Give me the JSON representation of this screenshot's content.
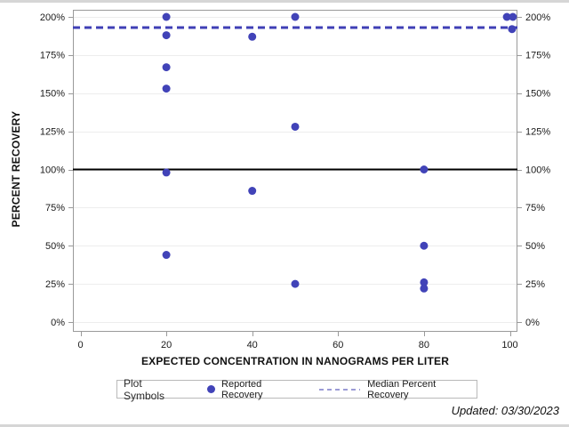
{
  "page": {
    "footer_note": "Updated: 03/30/2023"
  },
  "chart_data": {
    "type": "scatter",
    "title": "",
    "xlabel": "EXPECTED CONCENTRATION IN NANOGRAMS PER LITER",
    "ylabel": "PERCENT RECOVERY",
    "xlim": [
      0,
      100
    ],
    "ylim": [
      0,
      200
    ],
    "grid": "horizontal-only",
    "y_axis_sides": "left-and-right",
    "x_ticks": [
      {
        "v": 0,
        "label": "0"
      },
      {
        "v": 20,
        "label": "20"
      },
      {
        "v": 40,
        "label": "40"
      },
      {
        "v": 60,
        "label": "60"
      },
      {
        "v": 80,
        "label": "80"
      },
      {
        "v": 100,
        "label": "100"
      }
    ],
    "y_ticks": [
      {
        "v": 0,
        "label": "0%"
      },
      {
        "v": 25,
        "label": "25%"
      },
      {
        "v": 50,
        "label": "50%"
      },
      {
        "v": 75,
        "label": "75%"
      },
      {
        "v": 100,
        "label": "100%"
      },
      {
        "v": 125,
        "label": "125%"
      },
      {
        "v": 150,
        "label": "150%"
      },
      {
        "v": 175,
        "label": "175%"
      },
      {
        "v": 200,
        "label": "200%"
      }
    ],
    "series": [
      {
        "name": "Reported Recovery",
        "marker": "filled-circle",
        "color": "#4143b8",
        "points": [
          {
            "x": 20,
            "y": 200
          },
          {
            "x": 20,
            "y": 188
          },
          {
            "x": 20,
            "y": 167
          },
          {
            "x": 20,
            "y": 153
          },
          {
            "x": 20,
            "y": 98
          },
          {
            "x": 20,
            "y": 44
          },
          {
            "x": 40,
            "y": 187
          },
          {
            "x": 40,
            "y": 86
          },
          {
            "x": 50,
            "y": 200
          },
          {
            "x": 50,
            "y": 128
          },
          {
            "x": 50,
            "y": 25
          },
          {
            "x": 80,
            "y": 100
          },
          {
            "x": 80,
            "y": 50
          },
          {
            "x": 80,
            "y": 26
          },
          {
            "x": 80,
            "y": 22
          },
          {
            "x": 99.3,
            "y": 200
          },
          {
            "x": 100.7,
            "y": 200
          },
          {
            "x": 100.5,
            "y": 192
          }
        ]
      }
    ],
    "reference_lines": [
      {
        "name": "100 percent reference",
        "y": 100,
        "style": "solid",
        "color": "#000000",
        "width": 2
      },
      {
        "name": "Median Percent Recovery",
        "y": 193,
        "style": "dashed",
        "color": "#3f3fb6",
        "width": 3
      }
    ],
    "legend": {
      "position": "bottom",
      "title": "Plot Symbols",
      "entries": [
        {
          "label": "Reported Recovery",
          "symbol": "dot",
          "color": "#4143b8"
        },
        {
          "label": "Median Percent Recovery",
          "symbol": "dashed-line",
          "color": "#9b9bd6"
        }
      ]
    }
  }
}
